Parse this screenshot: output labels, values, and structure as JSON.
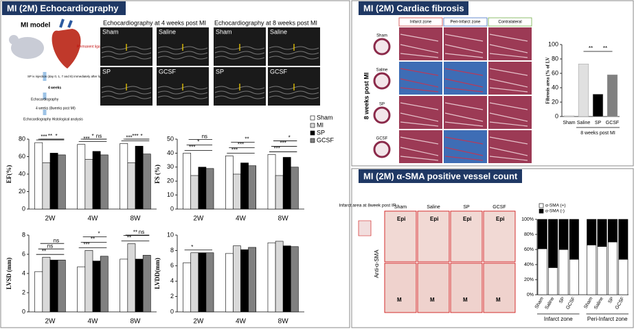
{
  "panels": [
    "MI (2M) Echocardiography",
    "MI (2M) Cardiac fibrosis",
    "MI (2M) α-SMA positive vessel count"
  ],
  "echo": {
    "model_title": "MI model",
    "model_notes": [
      "Permanent ligation of LAD",
      "SP iv injection (day 0, 1, 7 and 8) immediately after ligation",
      "4 weeks",
      "Echocardiography",
      "4 weeks (8weeks post MI)",
      "Echocardiography Histological analysis"
    ],
    "headings": [
      "Echocardiography at 4 weeks post MI",
      "Echocardiography at 8 weeks post MI"
    ],
    "image_labels": [
      [
        "Sham",
        "Saline",
        "SP",
        "GCSF"
      ],
      [
        "Sham",
        "Saline",
        "SP",
        "GCSF"
      ]
    ]
  },
  "fibrosis": {
    "columns": [
      "Infarct zone",
      "Peri-Infarct zone",
      "Contralateral"
    ],
    "side_label": "8 weeks post MI",
    "rows": [
      "Sham",
      "Saline",
      "SP",
      "GCSF"
    ]
  },
  "sma": {
    "note": "Infarct area at 8week post IR",
    "columns": [
      "Sham",
      "Saline",
      "SP",
      "GCSF"
    ],
    "row_label": "Anti-α-SMA",
    "top_tags": [
      "Epi",
      "Epi",
      "Epi",
      "Epi"
    ],
    "bottom_tags": [
      "M",
      "M",
      "M",
      "M"
    ]
  },
  "chart_data": [
    {
      "type": "bar",
      "ylabel": "EF(%)",
      "categories": [
        "2W",
        "4W",
        "8W"
      ],
      "legend": "right",
      "series": [
        {
          "name": "Sham",
          "color": "#ffffff",
          "values": [
            76,
            74,
            75
          ]
        },
        {
          "name": "MI",
          "color": "#d9d9d9",
          "values": [
            53,
            57,
            53
          ]
        },
        {
          "name": "SP",
          "color": "#000000",
          "values": [
            64,
            66,
            72
          ]
        },
        {
          "name": "GCSF",
          "color": "#808080",
          "values": [
            62,
            62,
            63
          ]
        }
      ],
      "ylim": [
        0,
        80
      ],
      "yticks": [
        0,
        20,
        40,
        60,
        80
      ],
      "annotations": [
        [
          "***",
          "**",
          "*"
        ],
        [
          "***",
          "*",
          "ns"
        ],
        [
          "***",
          "***",
          "*"
        ]
      ]
    },
    {
      "type": "bar",
      "ylabel": "FS (%)",
      "categories": [
        "2W",
        "4W",
        "8W"
      ],
      "series": [
        {
          "color": "#ffffff",
          "values": [
            40,
            38,
            39
          ]
        },
        {
          "color": "#d9d9d9",
          "values": [
            24,
            25,
            24
          ]
        },
        {
          "color": "#000000",
          "values": [
            30,
            33,
            37
          ]
        },
        {
          "color": "#808080",
          "values": [
            29,
            31,
            30
          ]
        }
      ],
      "ylim": [
        0,
        50
      ],
      "yticks": [
        0,
        10,
        20,
        30,
        40,
        50
      ],
      "annotations": [
        [
          "***",
          "*",
          "ns"
        ],
        [
          "***",
          "***",
          "**"
        ],
        [
          "***",
          "***",
          "*"
        ]
      ]
    },
    {
      "type": "bar",
      "ylabel": "LVSD (mm)",
      "categories": [
        "2W",
        "4W",
        "8W"
      ],
      "series": [
        {
          "color": "#ffffff",
          "values": [
            4.2,
            4.7,
            5.5
          ]
        },
        {
          "color": "#d9d9d9",
          "values": [
            5.7,
            6.4,
            7.1
          ]
        },
        {
          "color": "#000000",
          "values": [
            5.4,
            5.3,
            5.5
          ]
        },
        {
          "color": "#808080",
          "values": [
            5.4,
            5.8,
            5.9
          ]
        }
      ],
      "ylim": [
        0,
        8
      ],
      "yticks": [
        0,
        2,
        4,
        6,
        8
      ],
      "annotations": [
        [
          "**",
          "ns",
          "ns"
        ],
        [
          "***",
          "**",
          "*"
        ],
        [
          "**",
          "**",
          "ns"
        ]
      ]
    },
    {
      "type": "bar",
      "ylabel": "LVDD(mm)",
      "categories": [
        "2W",
        "4W",
        "8W"
      ],
      "series": [
        {
          "color": "#ffffff",
          "values": [
            6.4,
            7.6,
            9.0
          ]
        },
        {
          "color": "#d9d9d9",
          "values": [
            7.7,
            8.6,
            9.2
          ]
        },
        {
          "color": "#000000",
          "values": [
            7.7,
            8.1,
            8.6
          ]
        },
        {
          "color": "#808080",
          "values": [
            7.7,
            8.4,
            8.5
          ]
        }
      ],
      "ylim": [
        0,
        10
      ],
      "yticks": [
        0,
        2,
        4,
        6,
        8,
        10
      ],
      "annotations": [
        [
          "*"
        ],
        [],
        []
      ]
    },
    {
      "type": "bar",
      "ylabel": "Fibrosis area (% of LV",
      "xlabel": "8 weeks post MI",
      "categories": [
        "Sham",
        "Saline",
        "SP",
        "GCSF"
      ],
      "values": [
        1,
        73,
        31,
        58
      ],
      "colors": [
        "#ffffff",
        "#e0e0e0",
        "#000000",
        "#808080"
      ],
      "ylim": [
        0,
        100
      ],
      "yticks": [
        0,
        20,
        40,
        60,
        80,
        100
      ],
      "annotations": [
        [
          "**",
          "**"
        ]
      ]
    },
    {
      "type": "stacked_bar",
      "categories": [
        "Sham",
        "Saline",
        "SP",
        "GCSF",
        "Sham",
        "Saline",
        "SP",
        "GCSF"
      ],
      "groups": [
        "Infarct zone",
        "Peri-Infarct zone"
      ],
      "legend": "top-left",
      "series": [
        {
          "name": "α-SMA (+)",
          "color": "#ffffff",
          "values": [
            61,
            36,
            60,
            47,
            66,
            64,
            70,
            47
          ]
        },
        {
          "name": "α-SMA (-)",
          "color": "#000000",
          "values": [
            39,
            64,
            40,
            53,
            34,
            36,
            30,
            53
          ]
        }
      ],
      "ylim": [
        0,
        100
      ],
      "yticks": [
        {
          "value": 0,
          "label": "0%"
        },
        {
          "value": 20,
          "label": "20%"
        },
        {
          "value": 40,
          "label": "40%"
        },
        {
          "value": 60,
          "label": "60%"
        },
        {
          "value": 80,
          "label": "80%"
        },
        {
          "value": 100,
          "label": "100%"
        }
      ]
    }
  ]
}
